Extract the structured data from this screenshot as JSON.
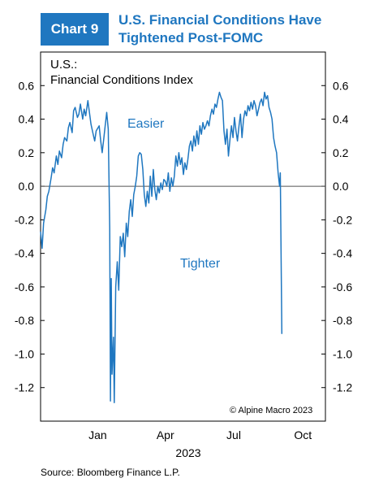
{
  "header": {
    "badge": "Chart 9",
    "title_line1": "U.S. Financial Conditions Have",
    "title_line2": "Tightened Post-FOMC"
  },
  "source": "Source: Bloomberg Finance L.P.",
  "colors": {
    "accent": "#1f77c0",
    "line": "#1f77c0",
    "zero_line": "#555555"
  },
  "chart_data": {
    "type": "line",
    "title": "U.S.:",
    "subtitle": "Financial Conditions Index",
    "xlabel": "2023",
    "x_tick_labels": [
      "Jan",
      "Apr",
      "Jul",
      "Oct"
    ],
    "x_tick_dates": [
      "2023-01-01",
      "2023-04-01",
      "2023-07-01",
      "2023-10-01"
    ],
    "xlim": [
      "2022-10-17",
      "2023-10-31"
    ],
    "ylim": [
      -1.4,
      0.8
    ],
    "y_ticks": [
      -1.2,
      -1.0,
      -0.8,
      -0.6,
      -0.4,
      -0.2,
      0.0,
      0.2,
      0.4,
      0.6
    ],
    "y_tick_labels": [
      "-1.2",
      "-1.0",
      "-0.8",
      "-0.6",
      "-0.4",
      "-0.2",
      "0.0",
      "0.2",
      "0.4",
      "0.6"
    ],
    "annotations": {
      "easier": "Easier",
      "tighter": "Tighter",
      "copyright": "© Alpine Macro 2023"
    },
    "grid": false,
    "series": [
      {
        "color": "#1f77c0",
        "points": [
          [
            "2022-10-17",
            -0.27
          ],
          [
            "2022-10-19",
            -0.37
          ],
          [
            "2022-10-21",
            -0.22
          ],
          [
            "2022-10-24",
            -0.14
          ],
          [
            "2022-10-26",
            -0.06
          ],
          [
            "2022-10-28",
            -0.03
          ],
          [
            "2022-10-31",
            0.05
          ],
          [
            "2022-11-02",
            0.11
          ],
          [
            "2022-11-04",
            0.08
          ],
          [
            "2022-11-07",
            0.18
          ],
          [
            "2022-11-09",
            0.13
          ],
          [
            "2022-11-11",
            0.21
          ],
          [
            "2022-11-14",
            0.17
          ],
          [
            "2022-11-16",
            0.25
          ],
          [
            "2022-11-18",
            0.29
          ],
          [
            "2022-11-21",
            0.27
          ],
          [
            "2022-11-23",
            0.35
          ],
          [
            "2022-11-25",
            0.38
          ],
          [
            "2022-11-28",
            0.32
          ],
          [
            "2022-11-30",
            0.45
          ],
          [
            "2022-12-02",
            0.47
          ],
          [
            "2022-12-05",
            0.41
          ],
          [
            "2022-12-07",
            0.43
          ],
          [
            "2022-12-09",
            0.49
          ],
          [
            "2022-12-12",
            0.4
          ],
          [
            "2022-12-14",
            0.46
          ],
          [
            "2022-12-16",
            0.42
          ],
          [
            "2022-12-19",
            0.51
          ],
          [
            "2022-12-21",
            0.44
          ],
          [
            "2022-12-23",
            0.37
          ],
          [
            "2022-12-26",
            0.31
          ],
          [
            "2022-12-28",
            0.27
          ],
          [
            "2022-12-30",
            0.33
          ],
          [
            "2023-01-03",
            0.36
          ],
          [
            "2023-01-05",
            0.27
          ],
          [
            "2023-01-07",
            0.2
          ],
          [
            "2023-01-09",
            0.28
          ],
          [
            "2023-01-11",
            0.36
          ],
          [
            "2023-01-13",
            0.44
          ],
          [
            "2023-01-15",
            0.34
          ],
          [
            "2023-01-17",
            -0.25
          ],
          [
            "2023-01-18",
            -1.28
          ],
          [
            "2023-01-19",
            -0.55
          ],
          [
            "2023-01-20",
            -1.12
          ],
          [
            "2023-01-22",
            -0.9
          ],
          [
            "2023-01-23",
            -1.29
          ],
          [
            "2023-01-25",
            -0.6
          ],
          [
            "2023-01-27",
            -0.45
          ],
          [
            "2023-01-29",
            -0.62
          ],
          [
            "2023-01-31",
            -0.3
          ],
          [
            "2023-02-02",
            -0.36
          ],
          [
            "2023-02-04",
            -0.28
          ],
          [
            "2023-02-06",
            -0.42
          ],
          [
            "2023-02-08",
            -0.22
          ],
          [
            "2023-02-10",
            -0.3
          ],
          [
            "2023-02-12",
            -0.15
          ],
          [
            "2023-02-14",
            -0.08
          ],
          [
            "2023-02-16",
            -0.18
          ],
          [
            "2023-02-18",
            -0.05
          ],
          [
            "2023-02-20",
            0.0
          ],
          [
            "2023-02-22",
            0.06
          ],
          [
            "2023-02-24",
            0.18
          ],
          [
            "2023-02-26",
            0.2
          ],
          [
            "2023-02-28",
            0.19
          ],
          [
            "2023-03-02",
            0.1
          ],
          [
            "2023-03-04",
            -0.05
          ],
          [
            "2023-03-06",
            -0.12
          ],
          [
            "2023-03-08",
            -0.03
          ],
          [
            "2023-03-10",
            -0.1
          ],
          [
            "2023-03-12",
            0.06
          ],
          [
            "2023-03-14",
            -0.06
          ],
          [
            "2023-03-16",
            0.1
          ],
          [
            "2023-03-18",
            -0.02
          ],
          [
            "2023-03-20",
            -0.08
          ],
          [
            "2023-03-22",
            0.0
          ],
          [
            "2023-03-24",
            -0.04
          ],
          [
            "2023-03-26",
            0.02
          ],
          [
            "2023-03-28",
            -0.02
          ],
          [
            "2023-03-30",
            0.04
          ],
          [
            "2023-04-01",
            0.03
          ],
          [
            "2023-04-03",
            0.0
          ],
          [
            "2023-04-05",
            0.08
          ],
          [
            "2023-04-07",
            -0.03
          ],
          [
            "2023-04-09",
            0.05
          ],
          [
            "2023-04-11",
            0.0
          ],
          [
            "2023-04-13",
            0.06
          ],
          [
            "2023-04-15",
            0.18
          ],
          [
            "2023-04-17",
            0.12
          ],
          [
            "2023-04-19",
            0.2
          ],
          [
            "2023-04-21",
            0.13
          ],
          [
            "2023-04-23",
            0.17
          ],
          [
            "2023-04-25",
            0.07
          ],
          [
            "2023-04-27",
            0.14
          ],
          [
            "2023-04-29",
            0.1
          ],
          [
            "2023-05-01",
            0.16
          ],
          [
            "2023-05-03",
            0.24
          ],
          [
            "2023-05-05",
            0.27
          ],
          [
            "2023-05-07",
            0.21
          ],
          [
            "2023-05-09",
            0.3
          ],
          [
            "2023-05-11",
            0.24
          ],
          [
            "2023-05-13",
            0.33
          ],
          [
            "2023-05-15",
            0.25
          ],
          [
            "2023-05-17",
            0.36
          ],
          [
            "2023-05-19",
            0.31
          ],
          [
            "2023-05-21",
            0.38
          ],
          [
            "2023-05-23",
            0.34
          ],
          [
            "2023-05-25",
            0.36
          ],
          [
            "2023-05-27",
            0.39
          ],
          [
            "2023-05-29",
            0.36
          ],
          [
            "2023-05-31",
            0.42
          ],
          [
            "2023-06-02",
            0.46
          ],
          [
            "2023-06-04",
            0.43
          ],
          [
            "2023-06-06",
            0.49
          ],
          [
            "2023-06-08",
            0.47
          ],
          [
            "2023-06-10",
            0.52
          ],
          [
            "2023-06-12",
            0.56
          ],
          [
            "2023-06-14",
            0.53
          ],
          [
            "2023-06-16",
            0.51
          ],
          [
            "2023-06-18",
            0.33
          ],
          [
            "2023-06-20",
            0.25
          ],
          [
            "2023-06-22",
            0.34
          ],
          [
            "2023-06-24",
            0.18
          ],
          [
            "2023-06-26",
            0.28
          ],
          [
            "2023-06-28",
            0.36
          ],
          [
            "2023-06-30",
            0.29
          ],
          [
            "2023-07-02",
            0.41
          ],
          [
            "2023-07-04",
            0.33
          ],
          [
            "2023-07-06",
            0.27
          ],
          [
            "2023-07-08",
            0.36
          ],
          [
            "2023-07-10",
            0.43
          ],
          [
            "2023-07-12",
            0.29
          ],
          [
            "2023-07-14",
            0.4
          ],
          [
            "2023-07-16",
            0.45
          ],
          [
            "2023-07-18",
            0.42
          ],
          [
            "2023-07-20",
            0.48
          ],
          [
            "2023-07-22",
            0.45
          ],
          [
            "2023-07-24",
            0.5
          ],
          [
            "2023-07-26",
            0.46
          ],
          [
            "2023-07-28",
            0.51
          ],
          [
            "2023-07-30",
            0.48
          ],
          [
            "2023-08-01",
            0.42
          ],
          [
            "2023-08-03",
            0.46
          ],
          [
            "2023-08-05",
            0.5
          ],
          [
            "2023-08-07",
            0.52
          ],
          [
            "2023-08-09",
            0.48
          ],
          [
            "2023-08-11",
            0.56
          ],
          [
            "2023-08-13",
            0.52
          ],
          [
            "2023-08-15",
            0.54
          ],
          [
            "2023-08-17",
            0.47
          ],
          [
            "2023-08-19",
            0.44
          ],
          [
            "2023-08-21",
            0.4
          ],
          [
            "2023-08-23",
            0.29
          ],
          [
            "2023-08-25",
            0.24
          ],
          [
            "2023-08-27",
            0.2
          ],
          [
            "2023-08-29",
            0.08
          ],
          [
            "2023-08-31",
            0.0
          ],
          [
            "2023-09-01",
            0.08
          ],
          [
            "2023-09-03",
            -0.88
          ]
        ]
      }
    ]
  }
}
